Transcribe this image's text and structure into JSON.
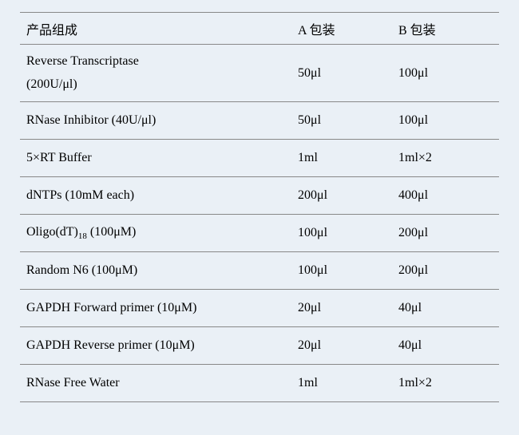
{
  "table": {
    "headers": {
      "component": "产品组成",
      "packageA": "A 包装",
      "packageB": "B 包装"
    },
    "rows": [
      {
        "component_line1": "Reverse Transcriptase",
        "component_line2": "(200U/μl)",
        "packageA": "50μl",
        "packageB": "100μl",
        "multiline": true
      },
      {
        "component": "RNase Inhibitor (40U/μl)",
        "packageA": "50μl",
        "packageB": "100μl"
      },
      {
        "component": "5×RT Buffer",
        "packageA": "1ml",
        "packageB": "1ml×2"
      },
      {
        "component": "dNTPs (10mM each)",
        "packageA": "200μl",
        "packageB": "400μl"
      },
      {
        "component_prefix": "Oligo(dT)",
        "component_sub": "18",
        "component_suffix": " (100μM)",
        "packageA": "100μl",
        "packageB": "200μl",
        "has_subscript": true
      },
      {
        "component": "Random N6 (100μM)",
        "packageA": "100μl",
        "packageB": "200μl"
      },
      {
        "component": "GAPDH Forward primer (10μM)",
        "packageA": "20μl",
        "packageB": "40μl"
      },
      {
        "component": "GAPDH Reverse primer (10μM)",
        "packageA": "20μl",
        "packageB": "40μl"
      },
      {
        "component": "RNase Free Water",
        "packageA": "1ml",
        "packageB": "1ml×2"
      }
    ],
    "styling": {
      "background_color": "#eaf0f6",
      "border_color": "#888888",
      "text_color": "#000000",
      "font_size": 16,
      "font_family": "Times New Roman, SimSun, serif",
      "header_row_height": 40,
      "data_row_height": 47,
      "tall_row_height": 72,
      "subscript_font_size": 11,
      "col_widths_percent": [
        58,
        21,
        21
      ]
    }
  }
}
